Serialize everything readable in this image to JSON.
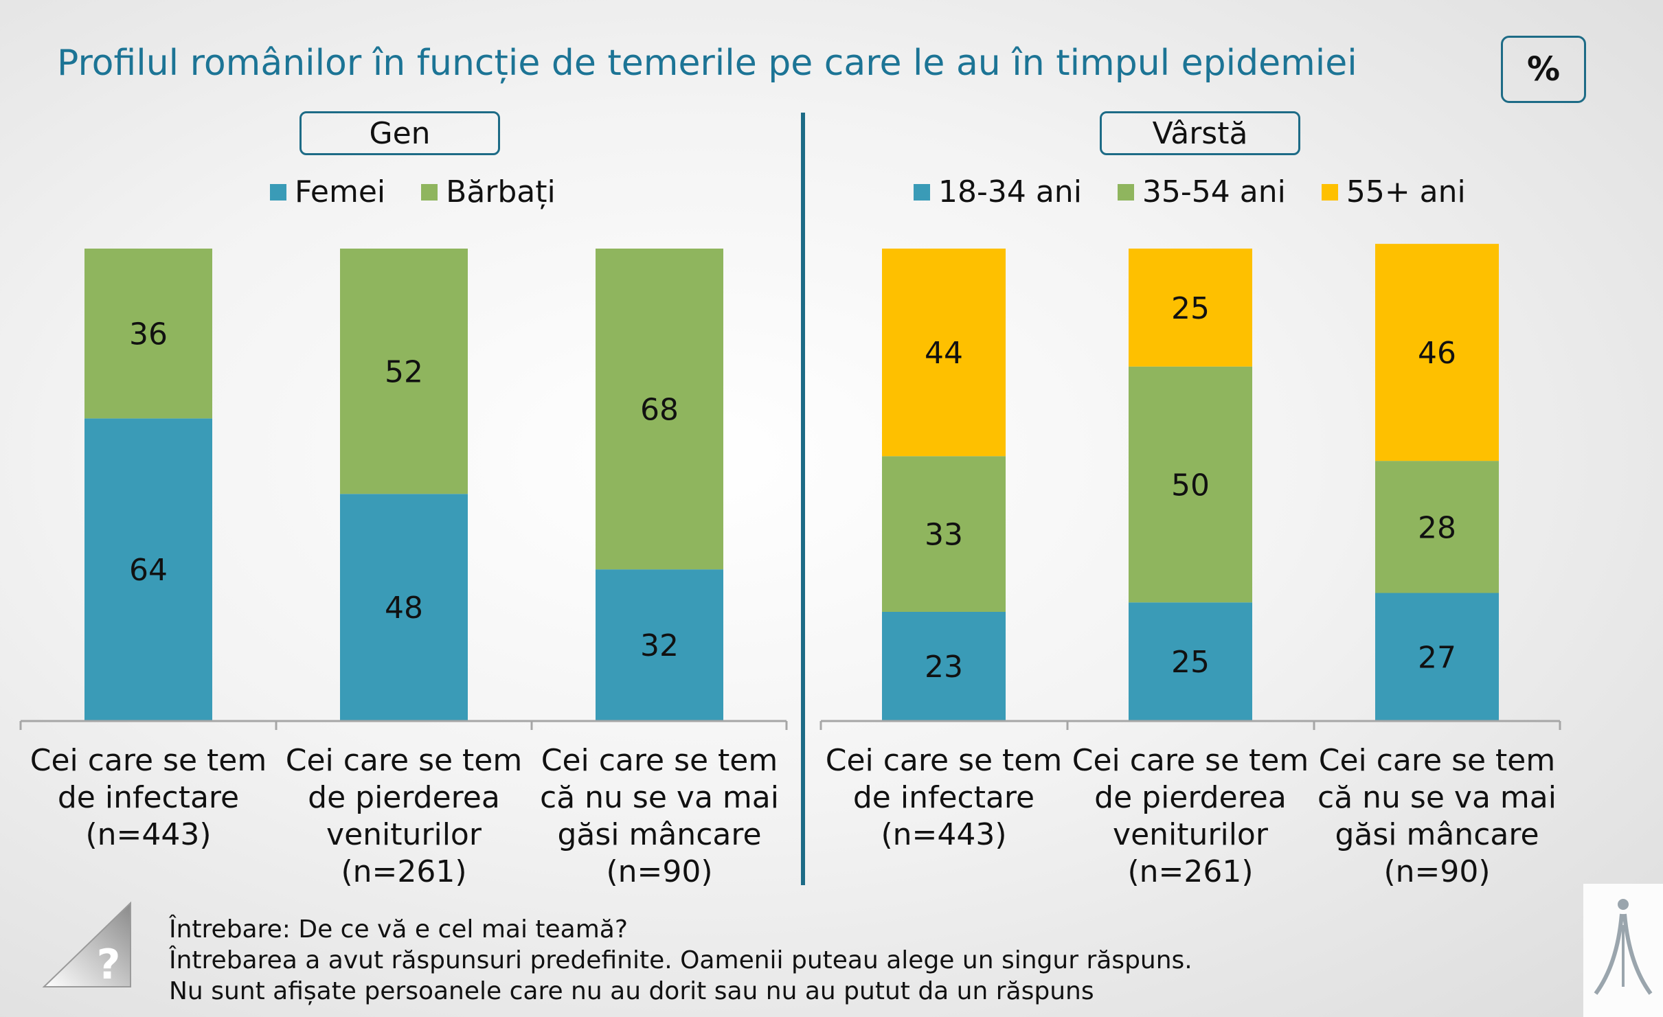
{
  "title": "Profilul românilor în funcție de temerile pe care le au în timpul epidemiei",
  "unit_badge": "%",
  "colors": {
    "femei": "#3a9bb7",
    "barbati": "#8fb55e",
    "age_18_34": "#3a9bb7",
    "age_35_54": "#8fb55e",
    "age_55_plus": "#fec000"
  },
  "footer": {
    "line1": "Întrebare: De ce vă e cel mai teamă?",
    "line2": "Întrebarea a avut răspunsuri predefinite. Oamenii puteau alege un singur răspuns.",
    "line3": "Nu sunt afișate persoanele care nu au dorit sau nu au putut da un răspuns"
  },
  "chart_data": [
    {
      "type": "bar",
      "stacked": true,
      "group_label": "Gen",
      "categories": [
        [
          "Cei care se tem",
          "de infectare",
          "(n=443)"
        ],
        [
          "Cei care se tem",
          "de pierderea",
          "veniturilor",
          "(n=261)"
        ],
        [
          "Cei care se tem",
          "că nu se va mai",
          "găsi mâncare",
          "(n=90)"
        ]
      ],
      "series": [
        {
          "name": "Femei",
          "color": "#3a9bb7",
          "values": [
            64,
            48,
            32
          ]
        },
        {
          "name": "Bărbați",
          "color": "#8fb55e",
          "values": [
            36,
            52,
            68
          ]
        }
      ],
      "ylim": [
        0,
        100
      ],
      "legend": "top"
    },
    {
      "type": "bar",
      "stacked": true,
      "group_label": "Vârstă",
      "categories": [
        [
          "Cei care se tem",
          "de infectare",
          "(n=443)"
        ],
        [
          "Cei care se tem",
          "de pierderea",
          "veniturilor",
          "(n=261)"
        ],
        [
          "Cei care se tem",
          "că nu se va mai",
          "găsi mâncare",
          "(n=90)"
        ]
      ],
      "series": [
        {
          "name": "18-34 ani",
          "color": "#3a9bb7",
          "values": [
            23,
            25,
            27
          ]
        },
        {
          "name": "35-54 ani",
          "color": "#8fb55e",
          "values": [
            33,
            50,
            28
          ]
        },
        {
          "name": "55+ ani",
          "color": "#fec000",
          "values": [
            44,
            25,
            46
          ]
        }
      ],
      "ylim": [
        0,
        100
      ],
      "legend": "top"
    }
  ]
}
